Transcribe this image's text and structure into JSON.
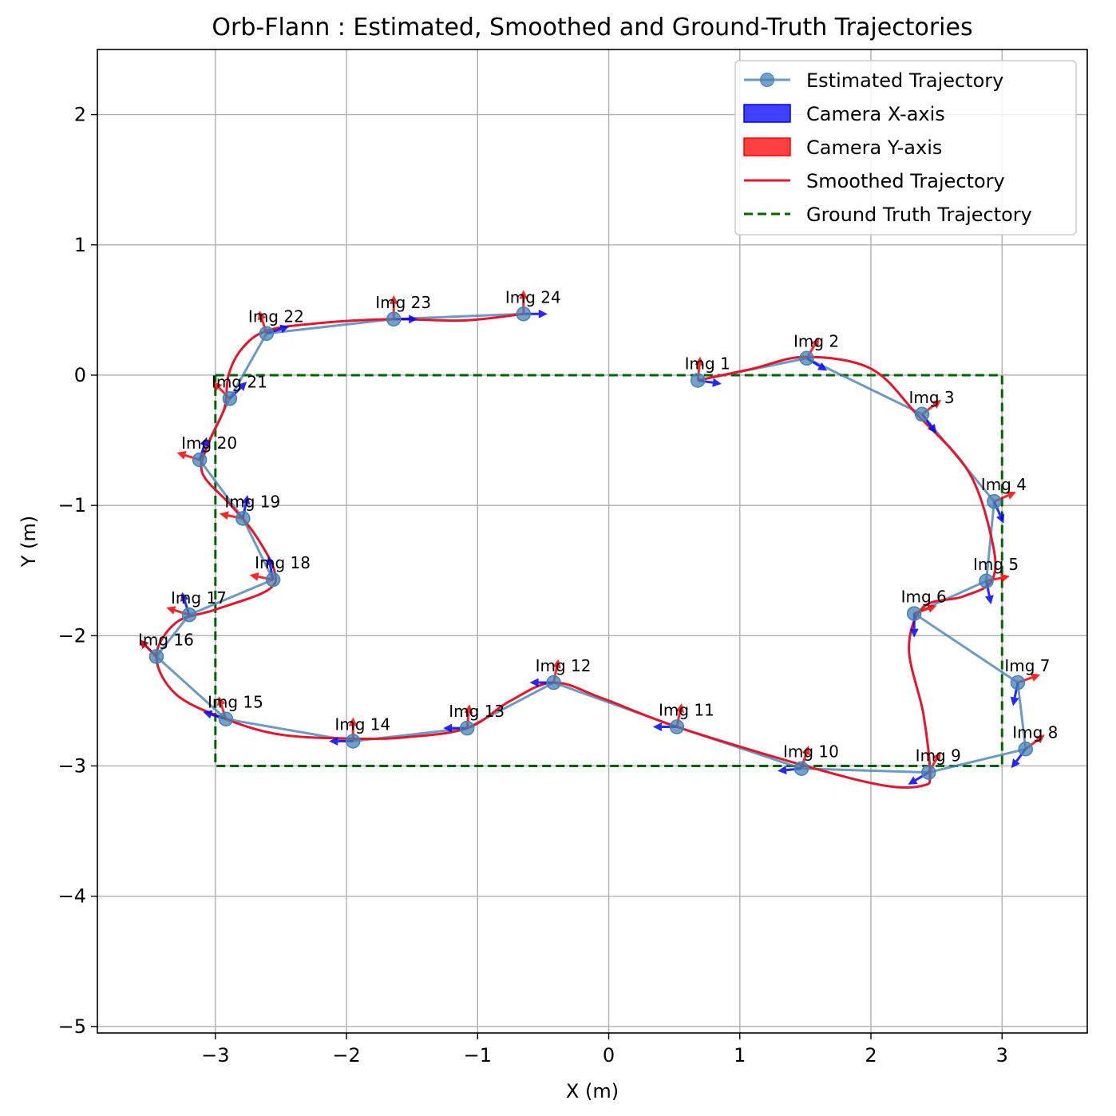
{
  "chart_data": {
    "type": "line",
    "title": "Orb-Flann : Estimated, Smoothed and Ground-Truth Trajectories",
    "xlabel": "X (m)",
    "ylabel": "Y (m)",
    "xlim": [
      -3.9,
      3.65
    ],
    "ylim": [
      -5.05,
      2.5
    ],
    "xticks": [
      -3,
      -2,
      -1,
      0,
      1,
      2,
      3
    ],
    "yticks": [
      -5,
      -4,
      -3,
      -2,
      -1,
      0,
      1,
      2
    ],
    "xtick_labels": [
      "−3",
      "−2",
      "−1",
      "0",
      "1",
      "2",
      "3"
    ],
    "ytick_labels": [
      "−5",
      "−4",
      "−3",
      "−2",
      "−1",
      "0",
      "1",
      "2"
    ],
    "grid": true,
    "legend_position": "top-right",
    "legend": [
      {
        "label": "Estimated Trajectory",
        "kind": "line-marker",
        "color": "#4682b4"
      },
      {
        "label": "Camera X-axis",
        "kind": "patch",
        "color": "#0000ff"
      },
      {
        "label": "Camera Y-axis",
        "kind": "patch",
        "color": "#ff0000"
      },
      {
        "label": "Smoothed Trajectory",
        "kind": "line",
        "color": "#e6142d"
      },
      {
        "label": "Ground Truth Trajectory",
        "kind": "dashed",
        "color": "#006400"
      }
    ],
    "colors": {
      "estimated": "#4682b4",
      "camera_x": "#0000ff",
      "camera_y": "#ff0000",
      "smoothed": "#e6142d",
      "ground_truth": "#006400",
      "grid": "#b0b0b0"
    },
    "series": [
      {
        "name": "Estimated Trajectory",
        "points": [
          {
            "label": "Img 1",
            "x": 0.68,
            "y": -0.04,
            "xdir": [
              1,
              -0.15
            ],
            "ydir": [
              0.1,
              1
            ]
          },
          {
            "label": "Img 2",
            "x": 1.51,
            "y": 0.13,
            "xdir": [
              0.9,
              -0.55
            ],
            "ydir": [
              0.55,
              0.9
            ]
          },
          {
            "label": "Img 3",
            "x": 2.39,
            "y": -0.3,
            "xdir": [
              0.6,
              -0.8
            ],
            "ydir": [
              0.8,
              0.6
            ]
          },
          {
            "label": "Img 4",
            "x": 2.94,
            "y": -0.97,
            "xdir": [
              0.4,
              -0.92
            ],
            "ydir": [
              0.92,
              0.4
            ]
          },
          {
            "label": "Img 5",
            "x": 2.88,
            "y": -1.58,
            "xdir": [
              0.2,
              -0.98
            ],
            "ydir": [
              0.98,
              0.2
            ]
          },
          {
            "label": "Img 6",
            "x": 2.33,
            "y": -1.83,
            "xdir": [
              0,
              -1
            ],
            "ydir": [
              1,
              0.35
            ]
          },
          {
            "label": "Img 7",
            "x": 3.12,
            "y": -2.36,
            "xdir": [
              -0.2,
              -0.98
            ],
            "ydir": [
              0.98,
              0.35
            ]
          },
          {
            "label": "Img 8",
            "x": 3.18,
            "y": -2.87,
            "xdir": [
              -0.6,
              -0.8
            ],
            "ydir": [
              0.8,
              0.6
            ]
          },
          {
            "label": "Img 9",
            "x": 2.44,
            "y": -3.05,
            "xdir": [
              -0.85,
              -0.5
            ],
            "ydir": [
              0.5,
              0.85
            ]
          },
          {
            "label": "Img 10",
            "x": 1.47,
            "y": -3.02,
            "xdir": [
              -1,
              -0.1
            ],
            "ydir": [
              0.3,
              0.95
            ]
          },
          {
            "label": "Img 11",
            "x": 0.52,
            "y": -2.7,
            "xdir": [
              -1,
              0
            ],
            "ydir": [
              0.2,
              0.98
            ]
          },
          {
            "label": "Img 12",
            "x": -0.42,
            "y": -2.36,
            "xdir": [
              -1,
              0
            ],
            "ydir": [
              0.2,
              0.98
            ]
          },
          {
            "label": "Img 13",
            "x": -1.08,
            "y": -2.71,
            "xdir": [
              -1,
              0
            ],
            "ydir": [
              0.1,
              1
            ]
          },
          {
            "label": "Img 14",
            "x": -1.95,
            "y": -2.81,
            "xdir": [
              -1,
              0
            ],
            "ydir": [
              0,
              1
            ]
          },
          {
            "label": "Img 15",
            "x": -2.92,
            "y": -2.64,
            "xdir": [
              -0.95,
              0.3
            ],
            "ydir": [
              -0.3,
              0.95
            ]
          },
          {
            "label": "Img 16",
            "x": -3.45,
            "y": -2.16,
            "xdir": [
              -0.7,
              0.7
            ],
            "ydir": [
              -0.7,
              0.7
            ]
          },
          {
            "label": "Img 17",
            "x": -3.2,
            "y": -1.84,
            "xdir": [
              -0.3,
              0.95
            ],
            "ydir": [
              -0.95,
              0.3
            ]
          },
          {
            "label": "Img 18",
            "x": -2.56,
            "y": -1.57,
            "xdir": [
              -0.2,
              1
            ],
            "ydir": [
              -1,
              0.2
            ]
          },
          {
            "label": "Img 19",
            "x": -2.79,
            "y": -1.1,
            "xdir": [
              0.2,
              1
            ],
            "ydir": [
              -1,
              0.2
            ]
          },
          {
            "label": "Img 20",
            "x": -3.12,
            "y": -0.65,
            "xdir": [
              0.3,
              0.95
            ],
            "ydir": [
              -0.95,
              0.3
            ]
          },
          {
            "label": "Img 21",
            "x": -2.89,
            "y": -0.18,
            "xdir": [
              0.7,
              0.7
            ],
            "ydir": [
              -0.7,
              0.7
            ]
          },
          {
            "label": "Img 22",
            "x": -2.61,
            "y": 0.32,
            "xdir": [
              0.95,
              0.3
            ],
            "ydir": [
              -0.3,
              0.95
            ]
          },
          {
            "label": "Img 23",
            "x": -1.64,
            "y": 0.43,
            "xdir": [
              1,
              0
            ],
            "ydir": [
              0,
              1
            ]
          },
          {
            "label": "Img 24",
            "x": -0.65,
            "y": 0.47,
            "xdir": [
              1,
              0
            ],
            "ydir": [
              0,
              1
            ]
          }
        ]
      },
      {
        "name": "Smoothed Trajectory",
        "points": [
          [
            0.68,
            -0.04
          ],
          [
            1.1,
            0.05
          ],
          [
            1.5,
            0.14
          ],
          [
            2.0,
            0.05
          ],
          [
            2.35,
            -0.3
          ],
          [
            2.75,
            -0.75
          ],
          [
            2.93,
            -1.3
          ],
          [
            2.92,
            -1.58
          ],
          [
            2.7,
            -1.7
          ],
          [
            2.4,
            -1.78
          ],
          [
            2.29,
            -2.1
          ],
          [
            2.4,
            -2.6
          ],
          [
            2.45,
            -3.05
          ],
          [
            2.4,
            -3.15
          ],
          [
            2.1,
            -3.15
          ],
          [
            1.5,
            -3.0
          ],
          [
            0.52,
            -2.7
          ],
          [
            -0.05,
            -2.48
          ],
          [
            -0.42,
            -2.36
          ],
          [
            -0.75,
            -2.5
          ],
          [
            -1.08,
            -2.71
          ],
          [
            -1.55,
            -2.78
          ],
          [
            -1.95,
            -2.79
          ],
          [
            -2.5,
            -2.76
          ],
          [
            -2.92,
            -2.64
          ],
          [
            -3.3,
            -2.45
          ],
          [
            -3.45,
            -2.16
          ],
          [
            -3.3,
            -1.9
          ],
          [
            -3.0,
            -1.8
          ],
          [
            -2.6,
            -1.65
          ],
          [
            -2.55,
            -1.5
          ],
          [
            -2.7,
            -1.22
          ],
          [
            -2.88,
            -1.0
          ],
          [
            -3.1,
            -0.75
          ],
          [
            -3.05,
            -0.52
          ],
          [
            -2.93,
            -0.25
          ],
          [
            -2.9,
            0.0
          ],
          [
            -2.8,
            0.2
          ],
          [
            -2.61,
            0.34
          ],
          [
            -2.2,
            0.4
          ],
          [
            -1.64,
            0.43
          ],
          [
            -1.1,
            0.42
          ],
          [
            -0.65,
            0.47
          ]
        ]
      },
      {
        "name": "Ground Truth Trajectory",
        "points": [
          [
            -3,
            0
          ],
          [
            3,
            0
          ],
          [
            3,
            -3
          ],
          [
            -3,
            -3
          ],
          [
            -3,
            0
          ]
        ]
      }
    ]
  }
}
